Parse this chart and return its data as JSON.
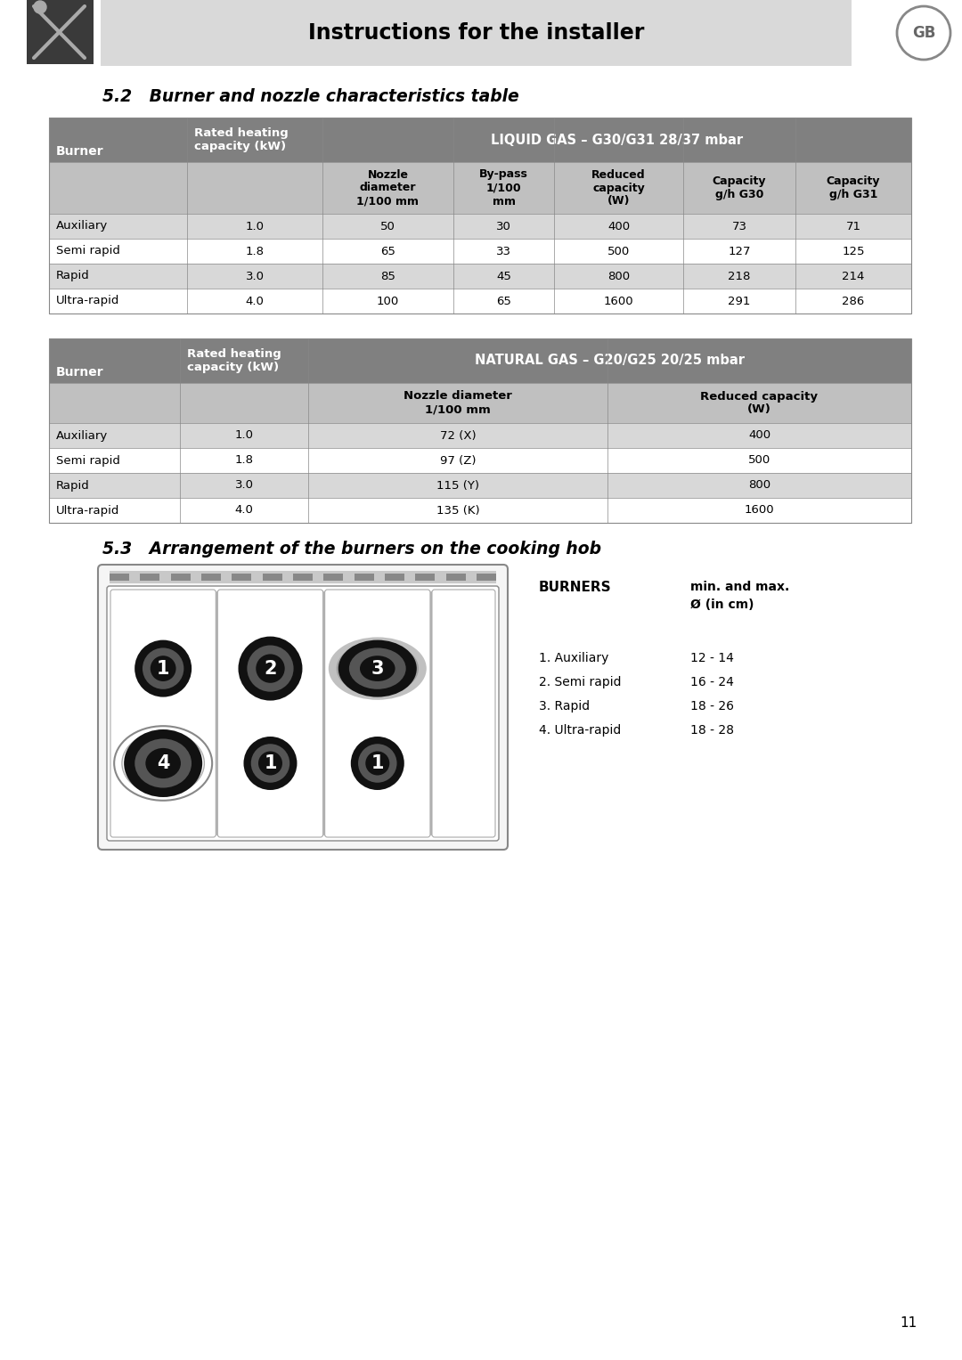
{
  "page_bg": "#ffffff",
  "header_bg": "#d9d9d9",
  "header_text": "Instructions for the installer",
  "gb_label": "GB",
  "section1_title": "5.2   Burner and nozzle characteristics table",
  "section2_title": "5.3   Arrangement of the burners on the cooking hob",
  "table1_header_bg": "#808080",
  "table1_subheader_bg": "#c0c0c0",
  "table1_row_odd_bg": "#d8d8d8",
  "table1_row_even_bg": "#ffffff",
  "table1_liquid_gas_header_bold": "LIQUID GAS – G30/G31",
  "table1_liquid_gas_header_normal": " 28/37 mbar",
  "table1_rows": [
    [
      "Auxiliary",
      "1.0",
      "50",
      "30",
      "400",
      "73",
      "71"
    ],
    [
      "Semi rapid",
      "1.8",
      "65",
      "33",
      "500",
      "127",
      "125"
    ],
    [
      "Rapid",
      "3.0",
      "85",
      "45",
      "800",
      "218",
      "214"
    ],
    [
      "Ultra-rapid",
      "4.0",
      "100",
      "65",
      "1600",
      "291",
      "286"
    ]
  ],
  "table2_header_bg": "#808080",
  "table2_subheader_bg": "#c0c0c0",
  "table2_row_odd_bg": "#d8d8d8",
  "table2_row_even_bg": "#ffffff",
  "table2_natural_gas_header_bold": "NATURAL GAS – G20/G25",
  "table2_natural_gas_header_normal": " 20/25 mbar",
  "table2_rows": [
    [
      "Auxiliary",
      "1.0",
      "72 (X)",
      "400"
    ],
    [
      "Semi rapid",
      "1.8",
      "97 (Z)",
      "500"
    ],
    [
      "Rapid",
      "3.0",
      "115 (Y)",
      "800"
    ],
    [
      "Ultra-rapid",
      "4.0",
      "135 (K)",
      "1600"
    ]
  ],
  "burners_label": "BURNERS",
  "burners_minmax_line1": "min. and max.",
  "burners_minmax_line2": "Ø (in cm)",
  "burners_list": [
    [
      "1. Auxiliary",
      "12 - 14"
    ],
    [
      "2. Semi rapid",
      "16 - 24"
    ],
    [
      "3. Rapid",
      "18 - 26"
    ],
    [
      "4. Ultra-rapid",
      "18 - 28"
    ]
  ],
  "page_number": "11"
}
